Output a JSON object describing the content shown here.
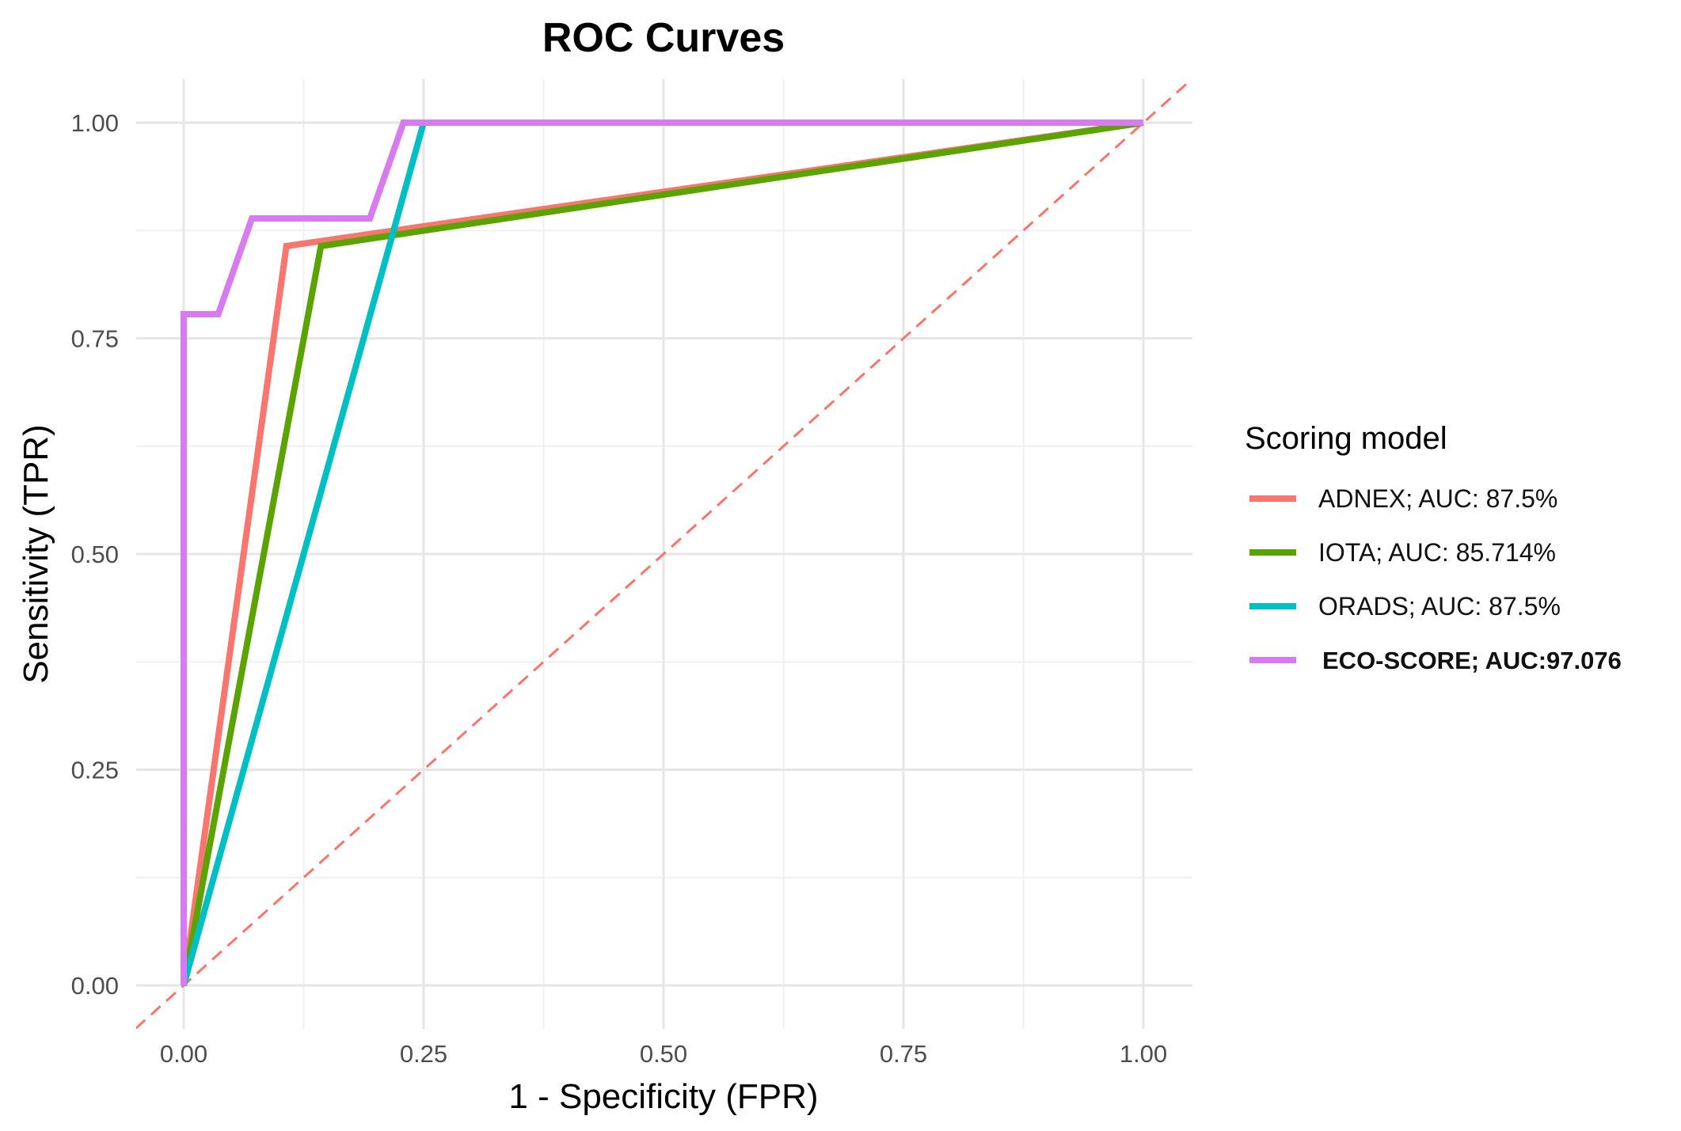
{
  "chart_data": {
    "type": "line",
    "title": "ROC Curves",
    "xlabel": "1 - Specificity (FPR)",
    "ylabel": "Sensitivity (TPR)",
    "xlim": [
      0,
      1
    ],
    "ylim": [
      0,
      1
    ],
    "x_ticks": [
      "0.00",
      "0.25",
      "0.50",
      "0.75",
      "1.00"
    ],
    "y_ticks": [
      "0.00",
      "0.25",
      "0.50",
      "0.75",
      "1.00"
    ],
    "grid": true,
    "legend": {
      "title": "Scoring model",
      "position": "right"
    },
    "series": [
      {
        "name": "ADNEX; AUC: 87.5%",
        "color": "#F8766D",
        "bold": false,
        "points": [
          [
            0,
            0
          ],
          [
            0.107,
            0.857
          ],
          [
            1,
            1
          ]
        ]
      },
      {
        "name": "IOTA; AUC: 85.714%",
        "color": "#5BA300",
        "bold": false,
        "points": [
          [
            0,
            0
          ],
          [
            0.143,
            0.857
          ],
          [
            1,
            1
          ]
        ]
      },
      {
        "name": "ORADS; AUC: 87.5%",
        "color": "#00BFC4",
        "bold": false,
        "points": [
          [
            0,
            0
          ],
          [
            0.25,
            1
          ],
          [
            1,
            1
          ]
        ]
      },
      {
        "name": "ECO-SCORE; AUC:97.076",
        "color": "#D77BF0",
        "bold": true,
        "points": [
          [
            0,
            0
          ],
          [
            0,
            0.778
          ],
          [
            0.036,
            0.778
          ],
          [
            0.071,
            0.889
          ],
          [
            0.194,
            0.889
          ],
          [
            0.229,
            1
          ],
          [
            1,
            1
          ]
        ]
      }
    ],
    "reference_line": {
      "points": [
        [
          -0.05,
          -0.05
        ],
        [
          1.05,
          1.05
        ]
      ],
      "color": "#F8766D",
      "style": "dashed"
    }
  }
}
